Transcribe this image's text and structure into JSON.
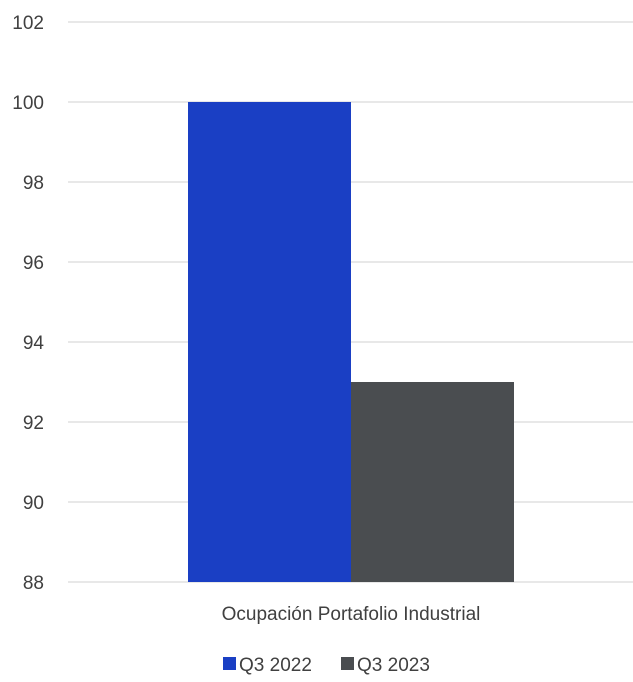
{
  "chart_data": {
    "type": "bar",
    "categories": [
      "Ocupación Portafolio Industrial"
    ],
    "series": [
      {
        "name": "Q3 2022",
        "values": [
          100
        ],
        "color": "#1a3fc4"
      },
      {
        "name": "Q3 2023",
        "values": [
          93
        ],
        "color": "#4a4d50"
      }
    ],
    "ylim": [
      88,
      102
    ],
    "yticks": [
      88,
      90,
      92,
      94,
      96,
      98,
      100,
      102
    ],
    "grid": true,
    "legend_position": "bottom",
    "title": "",
    "xlabel": "",
    "ylabel": ""
  }
}
